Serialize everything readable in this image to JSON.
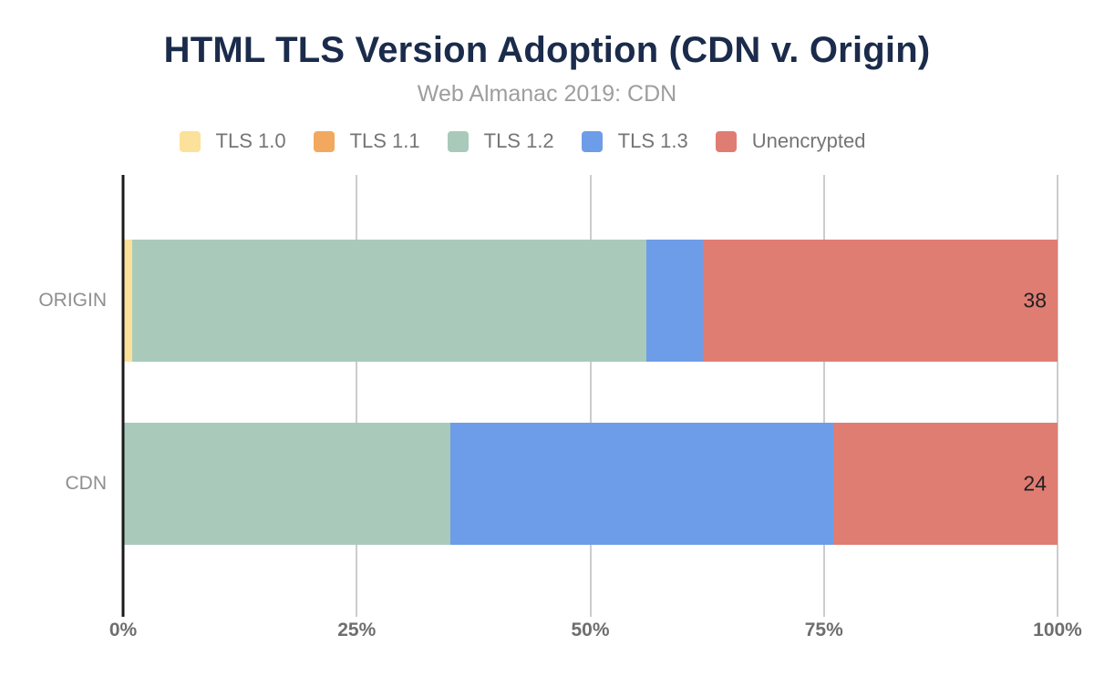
{
  "chart_data": {
    "type": "bar",
    "orientation": "horizontal",
    "stacked": true,
    "title": "HTML TLS Version Adoption (CDN v. Origin)",
    "subtitle": "Web Almanac 2019: CDN",
    "categories": [
      "ORIGIN",
      "CDN"
    ],
    "series": [
      {
        "name": "TLS 1.0",
        "color": "#FBE199",
        "values": [
          1,
          0
        ]
      },
      {
        "name": "TLS 1.1",
        "color": "#F2A95F",
        "values": [
          0,
          0
        ]
      },
      {
        "name": "TLS 1.2",
        "color": "#A9CABA",
        "values": [
          55,
          35
        ]
      },
      {
        "name": "TLS 1.3",
        "color": "#6D9DE8",
        "values": [
          6,
          41
        ]
      },
      {
        "name": "Unencrypted",
        "color": "#E07D73",
        "values": [
          38,
          24
        ]
      }
    ],
    "data_labels": [
      {
        "category": "ORIGIN",
        "series": "Unencrypted",
        "text": "38"
      },
      {
        "category": "CDN",
        "series": "Unencrypted",
        "text": "24"
      }
    ],
    "x_ticks": [
      {
        "value": 0,
        "label": "0%"
      },
      {
        "value": 25,
        "label": "25%"
      },
      {
        "value": 50,
        "label": "50%"
      },
      {
        "value": 75,
        "label": "75%"
      },
      {
        "value": 100,
        "label": "100%"
      }
    ],
    "xlim": [
      0,
      100
    ],
    "grid": true,
    "legend_position": "top",
    "colors": {
      "title_text": "#1B2B4B",
      "subtitle_text": "#9E9E9E",
      "legend_text": "#757575",
      "axis_tick_text": "#6E6E6E",
      "category_text": "#8F8F8F",
      "data_label_text": "#212121",
      "gridline": "#CCCCCC",
      "axis_line": "#1A1A1A",
      "background": "#FFFFFF"
    }
  }
}
